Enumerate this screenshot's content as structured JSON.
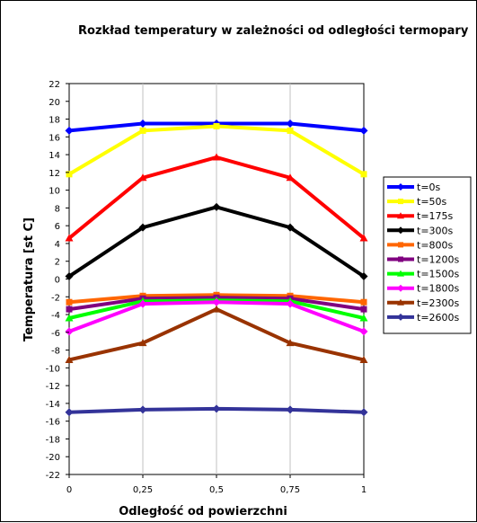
{
  "chart_data": {
    "type": "line",
    "title": "Rozkład temperatury w zależności od odległości termopary",
    "xlabel": "Odległość od powierzchni",
    "ylabel": "Temperatura [st C]",
    "x": [
      0,
      0.25,
      0.5,
      0.75,
      1
    ],
    "x_tick_labels": [
      "0",
      "0,25",
      "0,5",
      "0,75",
      "1"
    ],
    "ylim": [
      -22,
      22
    ],
    "y_tick_step": 2,
    "y_tick_labels": [
      "22",
      "20",
      "18",
      "16",
      "14",
      "12",
      "10",
      "8",
      "6",
      "4",
      "2",
      "0",
      "-2",
      "-4",
      "-6",
      "-8",
      "-10",
      "-12",
      "-14",
      "-16",
      "-18",
      "-20",
      "-22"
    ],
    "grid": "vertical",
    "legend_position": "right",
    "series": [
      {
        "name": "t=0s",
        "values": [
          16.7,
          17.5,
          17.5,
          17.5,
          16.7
        ],
        "color": "#0000ff",
        "marker": "diamond"
      },
      {
        "name": "t=50s",
        "values": [
          11.8,
          16.7,
          17.2,
          16.7,
          11.8
        ],
        "color": "#ffff00",
        "marker": "square"
      },
      {
        "name": "t=175s",
        "values": [
          4.6,
          11.4,
          13.7,
          11.4,
          4.6
        ],
        "color": "#ff0000",
        "marker": "triangle"
      },
      {
        "name": "t=300s",
        "values": [
          0.3,
          5.8,
          8.1,
          5.8,
          0.3
        ],
        "color": "#000000",
        "marker": "diamond"
      },
      {
        "name": "t=800s",
        "values": [
          -2.6,
          -1.9,
          -1.8,
          -1.9,
          -2.6
        ],
        "color": "#ff6600",
        "marker": "square"
      },
      {
        "name": "t=1200s",
        "values": [
          -3.4,
          -2.2,
          -2.1,
          -2.2,
          -3.4
        ],
        "color": "#800080",
        "marker": "square"
      },
      {
        "name": "t=1500s",
        "values": [
          -4.4,
          -2.5,
          -2.4,
          -2.5,
          -4.4
        ],
        "color": "#00ff00",
        "marker": "triangle"
      },
      {
        "name": "t=1800s",
        "values": [
          -5.9,
          -2.8,
          -2.6,
          -2.8,
          -5.9
        ],
        "color": "#ff00ff",
        "marker": "diamond"
      },
      {
        "name": "t=2300s",
        "values": [
          -9.1,
          -7.2,
          -3.4,
          -7.2,
          -9.1
        ],
        "color": "#993300",
        "marker": "triangle"
      },
      {
        "name": "t=2600s",
        "values": [
          -15.0,
          -14.7,
          -14.6,
          -14.7,
          -15.0
        ],
        "color": "#333399",
        "marker": "diamond"
      }
    ]
  }
}
